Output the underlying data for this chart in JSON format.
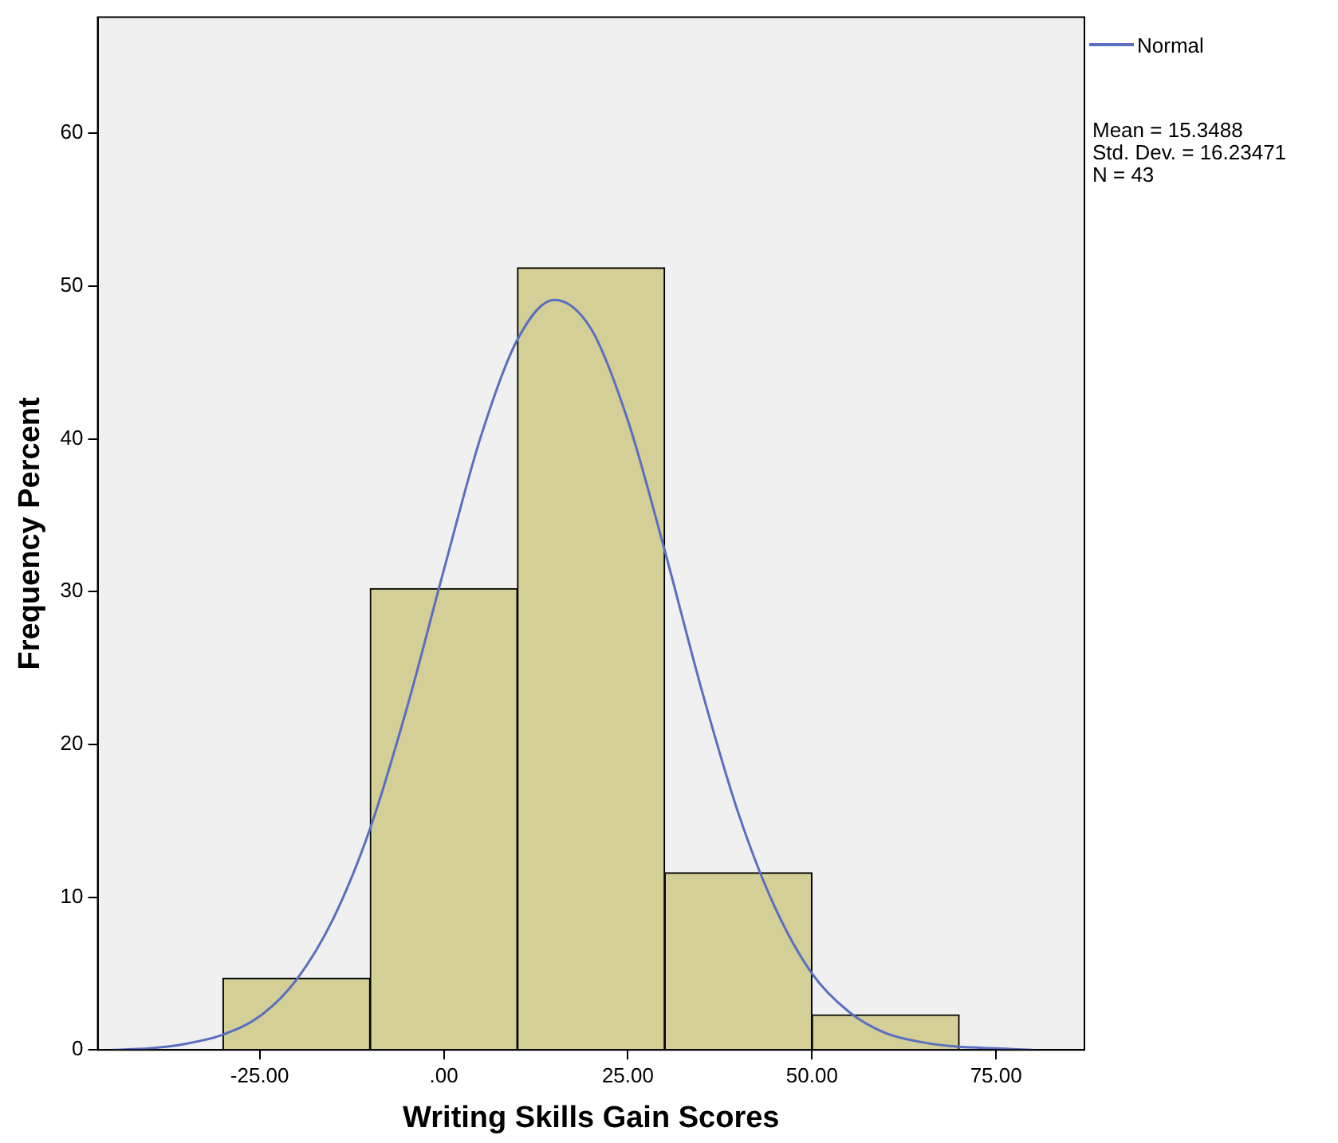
{
  "chart_data": {
    "type": "histogram",
    "xlabel": "Writing Skills Gain Scores",
    "ylabel": "Frequency Percent",
    "bins": [
      -30,
      -10,
      10,
      30,
      50,
      70
    ],
    "values": [
      4.7,
      30.2,
      51.2,
      11.6,
      2.3
    ],
    "color": "#d3cf97",
    "series": [
      {
        "type": "line",
        "name": "Normal",
        "color": "#5a6fc0",
        "x": [
          -45,
          -40,
          -35,
          -30,
          -25,
          -20,
          -15,
          -10,
          -5,
          0,
          5,
          10,
          15,
          20,
          25,
          30,
          35,
          40,
          45,
          50,
          55,
          60,
          65,
          70,
          75,
          80
        ],
        "values": [
          0.0,
          0.1,
          0.4,
          1.0,
          2.2,
          4.6,
          8.6,
          14.5,
          22.4,
          31.4,
          40.1,
          46.5,
          49.1,
          47.2,
          41.2,
          32.7,
          23.6,
          15.5,
          9.3,
          5.0,
          2.5,
          1.1,
          0.5,
          0.2,
          0.1,
          0.0
        ]
      }
    ],
    "xlim": [
      -47,
      87
    ],
    "xticks": [
      {
        "value": -25,
        "label": "-25.00"
      },
      {
        "value": 0,
        "label": ".00"
      },
      {
        "value": 25,
        "label": "25.00"
      },
      {
        "value": 50,
        "label": "50.00"
      },
      {
        "value": 75,
        "label": "75.00"
      }
    ],
    "ylim": [
      0,
      67.6
    ],
    "yticks": [
      0,
      10,
      20,
      30,
      40,
      50,
      60
    ],
    "grid": false,
    "legend": "top right",
    "marker": "none",
    "annotations": [
      "Mean = 15.3488",
      "Std. Dev. = 16.23471",
      "N = 43"
    ]
  }
}
